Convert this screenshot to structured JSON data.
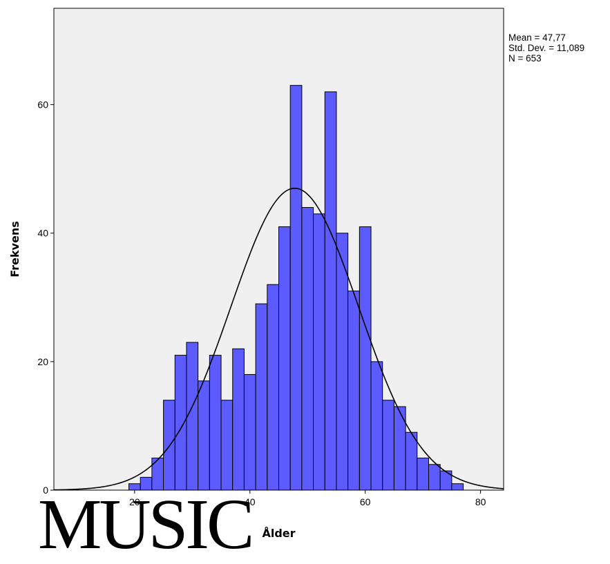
{
  "chart_data": {
    "type": "bar",
    "xlabel": "Ålder",
    "ylabel": "Frekvens",
    "bin_width": 2,
    "bins": [
      {
        "start": 19,
        "end": 21,
        "count": 1
      },
      {
        "start": 21,
        "end": 23,
        "count": 2
      },
      {
        "start": 23,
        "end": 25,
        "count": 5
      },
      {
        "start": 25,
        "end": 27,
        "count": 14
      },
      {
        "start": 27,
        "end": 29,
        "count": 21
      },
      {
        "start": 29,
        "end": 31,
        "count": 23
      },
      {
        "start": 31,
        "end": 33,
        "count": 17
      },
      {
        "start": 33,
        "end": 35,
        "count": 21
      },
      {
        "start": 35,
        "end": 37,
        "count": 14
      },
      {
        "start": 37,
        "end": 39,
        "count": 22
      },
      {
        "start": 39,
        "end": 41,
        "count": 18
      },
      {
        "start": 41,
        "end": 43,
        "count": 29
      },
      {
        "start": 43,
        "end": 45,
        "count": 32
      },
      {
        "start": 45,
        "end": 47,
        "count": 41
      },
      {
        "start": 47,
        "end": 49,
        "count": 63
      },
      {
        "start": 49,
        "end": 51,
        "count": 44
      },
      {
        "start": 51,
        "end": 53,
        "count": 43
      },
      {
        "start": 53,
        "end": 55,
        "count": 62
      },
      {
        "start": 55,
        "end": 57,
        "count": 40
      },
      {
        "start": 57,
        "end": 59,
        "count": 31
      },
      {
        "start": 59,
        "end": 61,
        "count": 41
      },
      {
        "start": 61,
        "end": 63,
        "count": 20
      },
      {
        "start": 63,
        "end": 65,
        "count": 14
      },
      {
        "start": 65,
        "end": 67,
        "count": 13
      },
      {
        "start": 67,
        "end": 69,
        "count": 9
      },
      {
        "start": 69,
        "end": 71,
        "count": 5
      },
      {
        "start": 71,
        "end": 73,
        "count": 4
      },
      {
        "start": 73,
        "end": 75,
        "count": 3
      },
      {
        "start": 75,
        "end": 77,
        "count": 1
      }
    ],
    "normal_curve": {
      "mean": 47.77,
      "std": 11.089,
      "n": 653
    },
    "xlim": [
      6,
      84
    ],
    "ylim": [
      0,
      75
    ],
    "x_ticks": [
      20,
      40,
      60,
      80
    ],
    "y_ticks": [
      0,
      20,
      40,
      60
    ],
    "grid": false,
    "colors": {
      "bar_fill": "#5b5bff",
      "bar_stroke": "#000000",
      "plot_bg": "#f0f0f0",
      "curve": "#000000"
    }
  },
  "stats_text": {
    "mean": "Mean = 47,77",
    "std": "Std. Dev. = 11,089",
    "n": "N = 653"
  },
  "watermark_text": "MUSIC"
}
